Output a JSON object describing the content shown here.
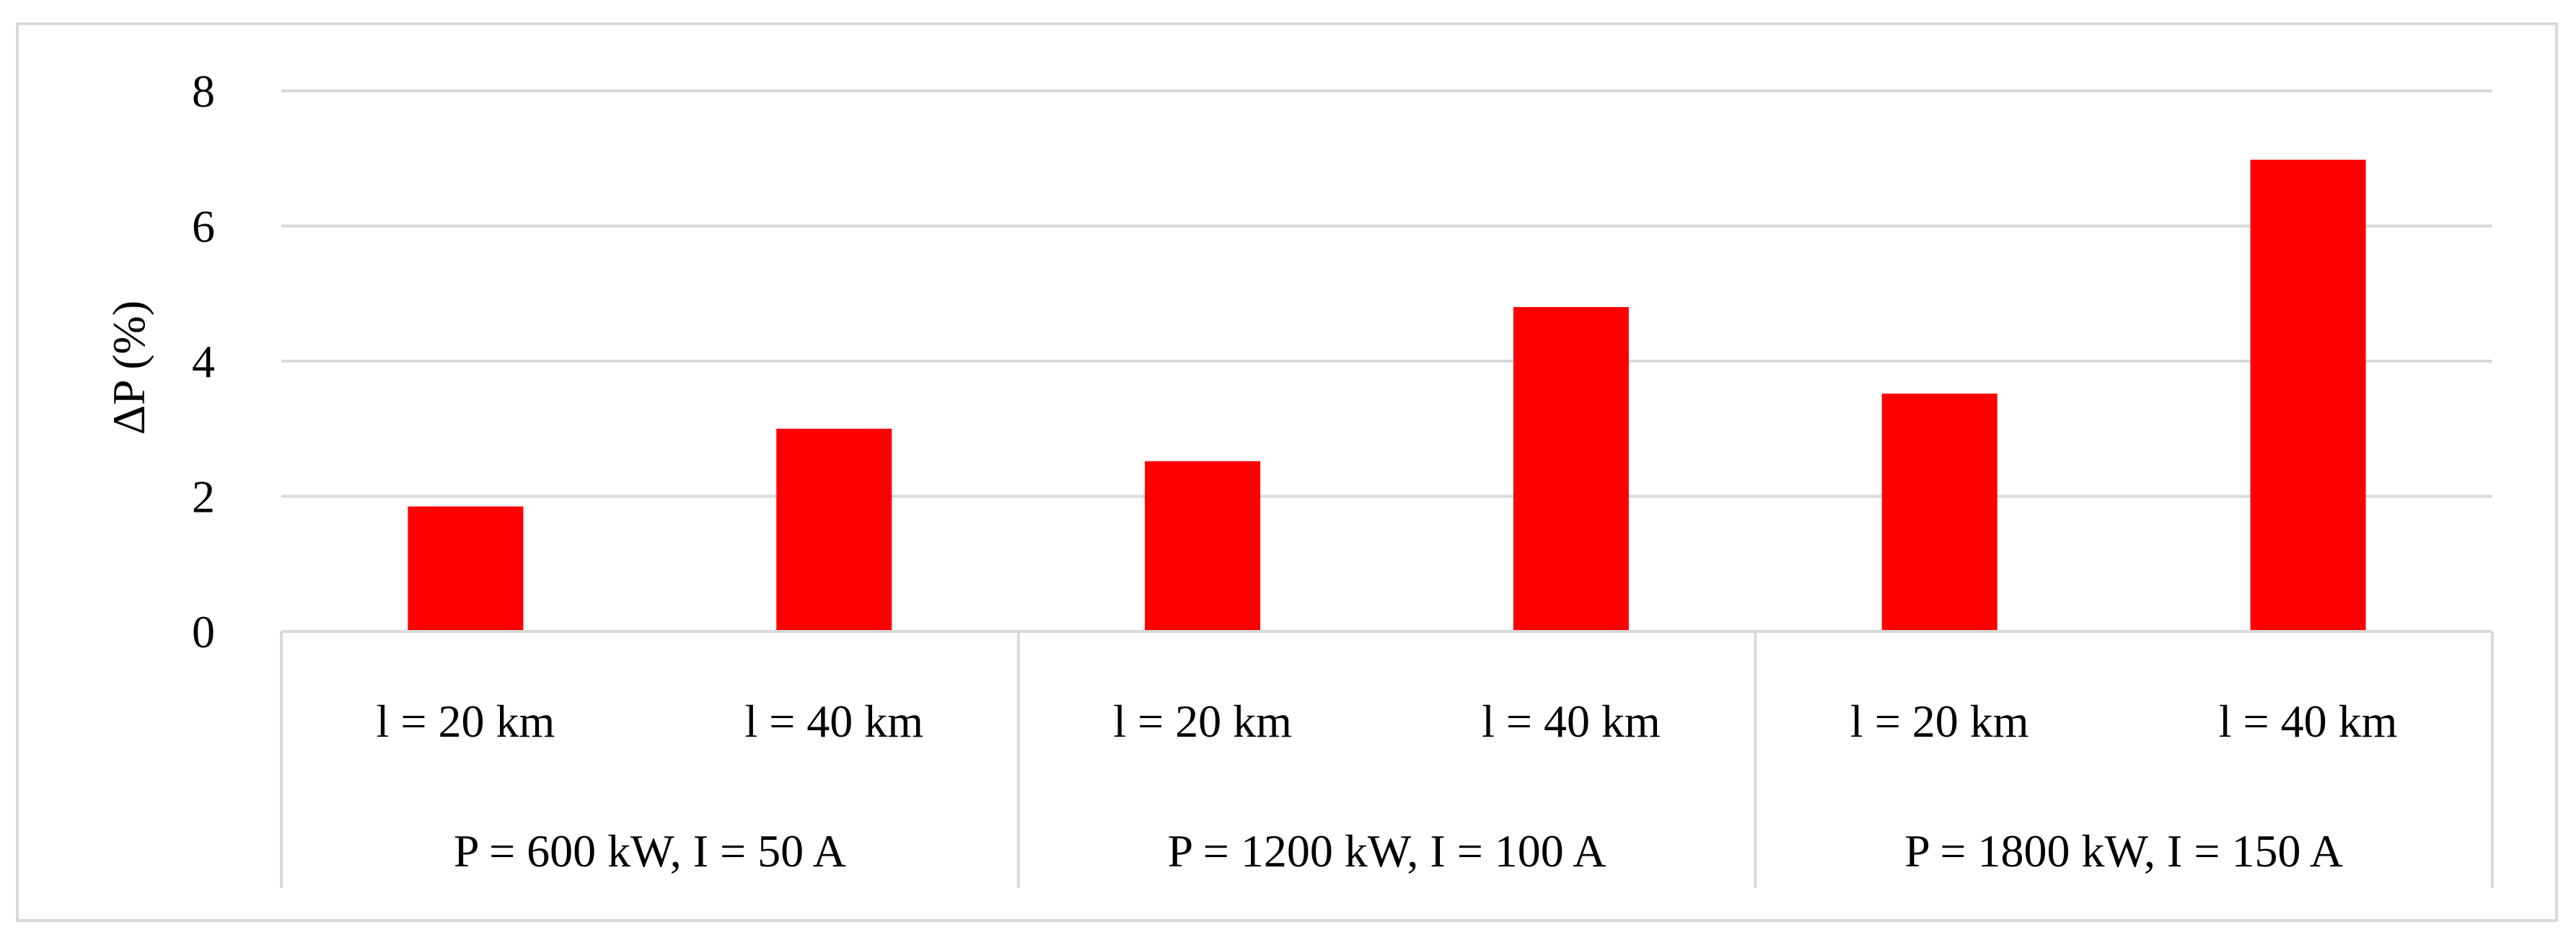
{
  "chart_data": {
    "type": "bar",
    "title": "",
    "ylabel": "ΔP (%)",
    "xlabel": "",
    "ylim": [
      0,
      8
    ],
    "yticks": [
      0,
      2,
      4,
      6,
      8
    ],
    "grid": true,
    "legend": "none",
    "bar_color": "#ff0000",
    "gridline_color": "#d9d9d9",
    "categories": [
      "l = 20 km",
      "l = 40 km",
      "l = 20 km",
      "l = 40 km",
      "l = 20 km",
      "l = 40 km"
    ],
    "groups": [
      {
        "label": "P = 600 kW, I = 50 A",
        "categories": [
          0,
          1
        ]
      },
      {
        "label": "P = 1200 kW, I = 100 A",
        "categories": [
          2,
          3
        ]
      },
      {
        "label": "P = 1800 kW, I = 150 A",
        "categories": [
          4,
          5
        ]
      }
    ],
    "values": [
      1.85,
      3.0,
      2.52,
      4.8,
      3.52,
      6.98
    ]
  }
}
